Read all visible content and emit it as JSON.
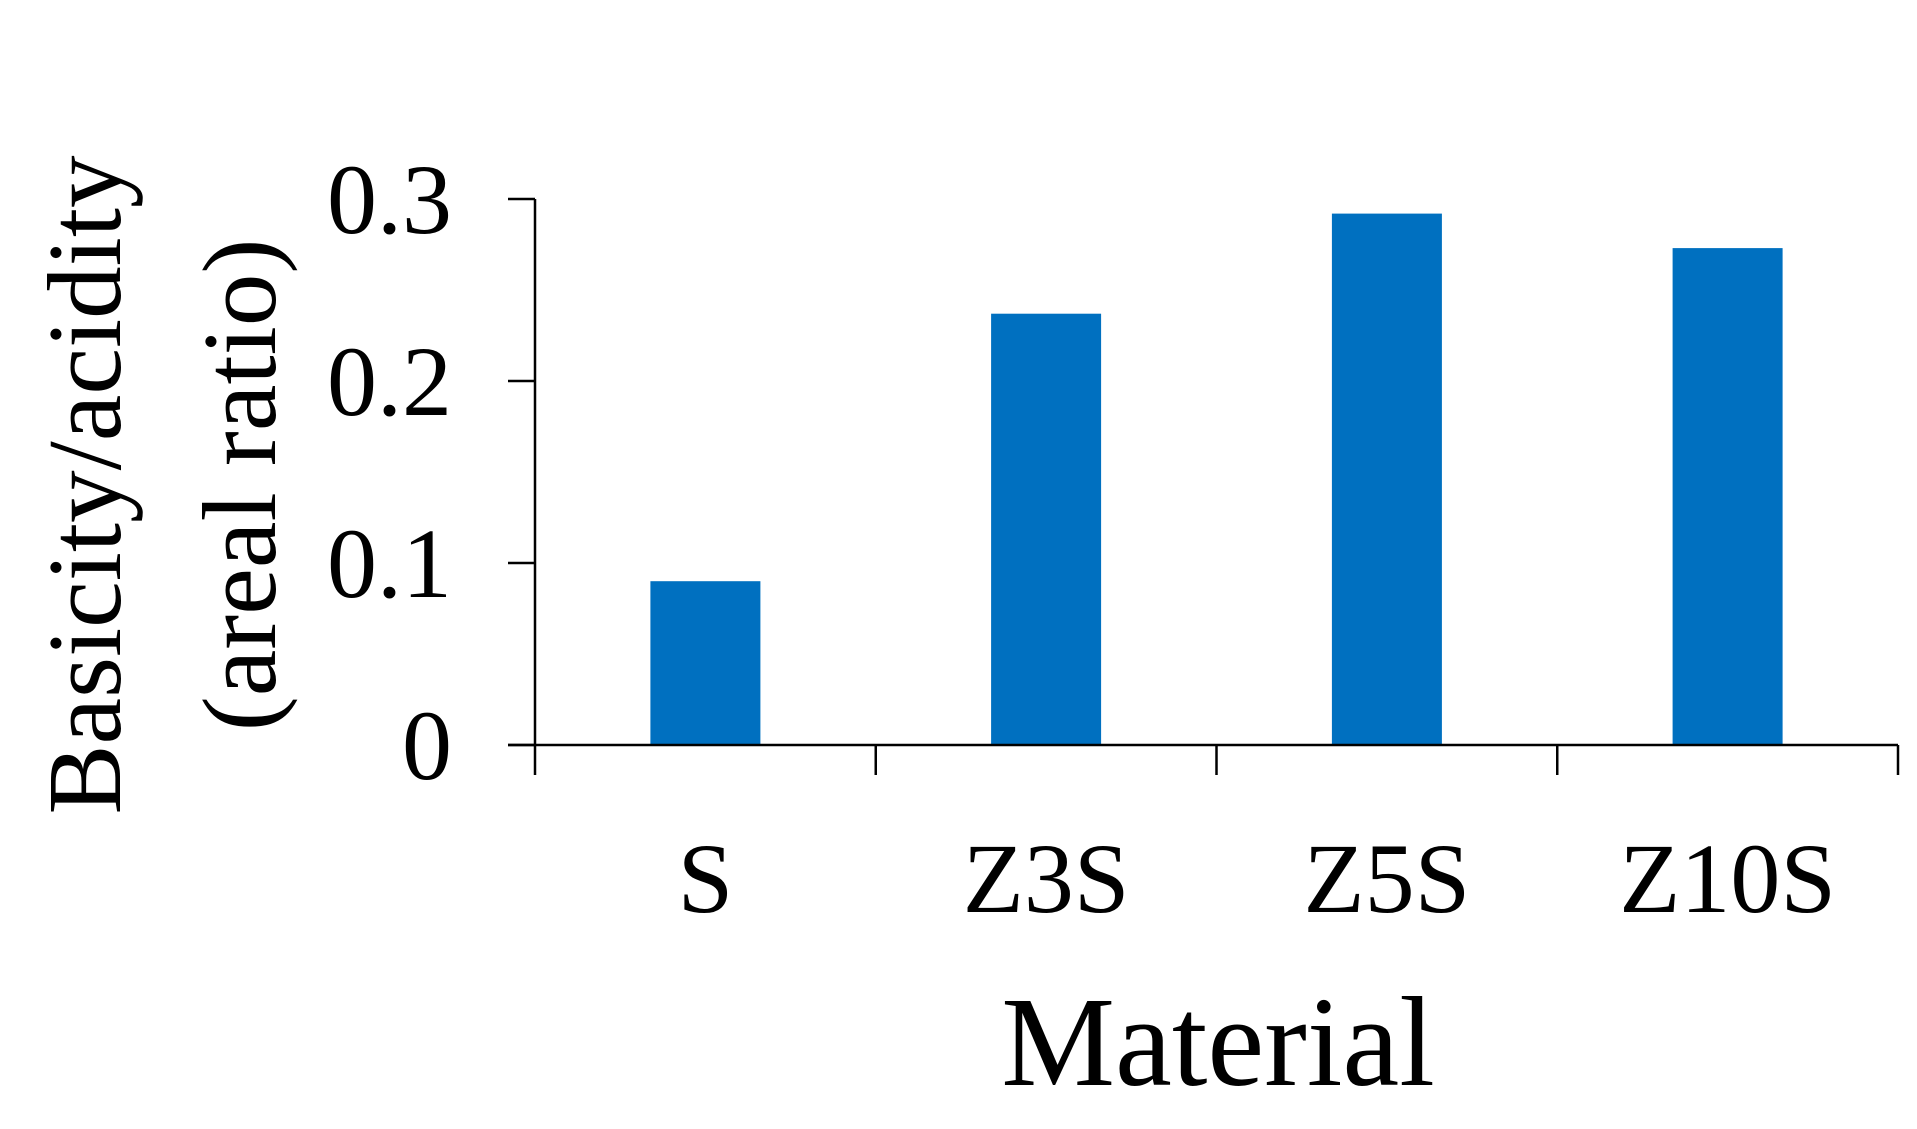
{
  "chart_data": {
    "type": "bar",
    "title": "",
    "xlabel": "Material",
    "ylabel_line1": "Basicity/acidity",
    "ylabel_line2": "(areal ratio)",
    "categories": [
      "S",
      "Z3S",
      "Z5S",
      "Z10S"
    ],
    "values": [
      0.09,
      0.237,
      0.292,
      0.273
    ],
    "ylim": [
      0,
      0.3
    ],
    "yticks": [
      0,
      0.1,
      0.2,
      0.3
    ],
    "ytick_labels": [
      "0",
      "0.1",
      "0.2",
      "0.3"
    ],
    "bar_color": "#0070C0",
    "axis_color": "#000000",
    "grid": false,
    "legend": "none"
  }
}
